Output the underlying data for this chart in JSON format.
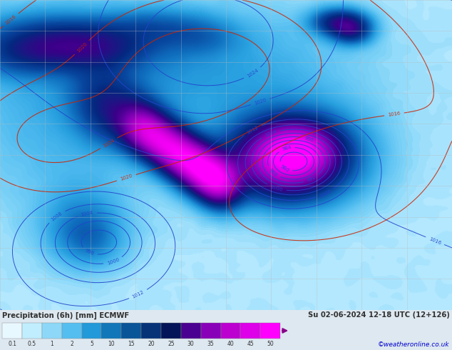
{
  "title_left": "Precipitation (6h) [mm] ECMWF",
  "title_right": "Su 02-06-2024 12-18 UTC (12+126)",
  "credit": "©weatheronline.co.uk",
  "colorbar_values": [
    "0.1",
    "0.5",
    "1",
    "2",
    "5",
    "10",
    "15",
    "20",
    "25",
    "30",
    "35",
    "40",
    "45",
    "50"
  ],
  "colorbar_colors": [
    "#e8f8ff",
    "#c0eeff",
    "#8dd8f8",
    "#55bef0",
    "#2299d8",
    "#1177b8",
    "#0a5598",
    "#063378",
    "#041458",
    "#4a0090",
    "#8800b8",
    "#bb00d0",
    "#dd00e8",
    "#ff00ff"
  ],
  "bottom_bar_color": "#dde8f0",
  "bottom_text_color": "#303030",
  "credit_color": "#0000cc",
  "map_bg": "#f0f0f0",
  "land_color": "#e8e8e8",
  "ocean_color": "#f8f8f8",
  "grid_color": "#bbbbbb",
  "contour_blue_color": "#2244cc",
  "contour_red_color": "#cc2200",
  "precip_colormap": [
    [
      0.0,
      "#ffffff"
    ],
    [
      0.002,
      "#dff5ff"
    ],
    [
      0.01,
      "#b8eaff"
    ],
    [
      0.03,
      "#80d4f8"
    ],
    [
      0.06,
      "#50bcf0"
    ],
    [
      0.1,
      "#28a0e0"
    ],
    [
      0.16,
      "#1070c0"
    ],
    [
      0.22,
      "#0848a0"
    ],
    [
      0.3,
      "#042880"
    ],
    [
      0.42,
      "#3a0088"
    ],
    [
      0.56,
      "#7800b0"
    ],
    [
      0.7,
      "#b000cc"
    ],
    [
      0.85,
      "#dc00e4"
    ],
    [
      1.0,
      "#ff00ff"
    ]
  ],
  "figsize": [
    6.34,
    4.9
  ],
  "dpi": 100
}
